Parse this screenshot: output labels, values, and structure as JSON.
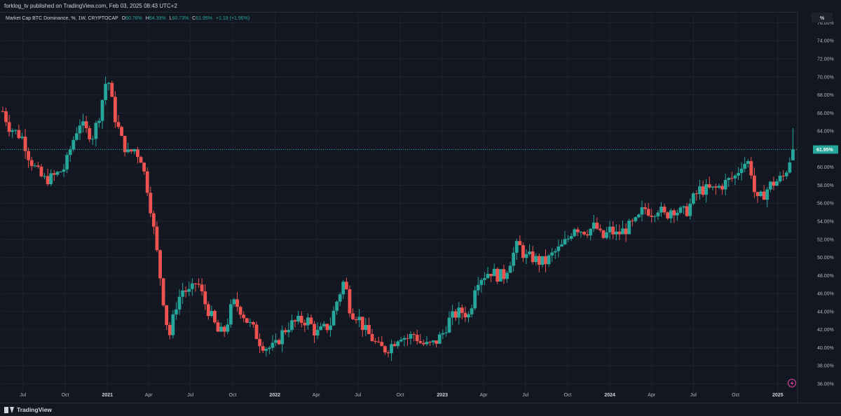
{
  "header": {
    "published_text": "forklog_tv published on TradingView.com, Feb 03, 2025 08:43 UTC+2"
  },
  "legend": {
    "title": "Market Cap BTC Dominance, %, 1W, CRYPTOCAP",
    "o_label": "O",
    "o_value": "60.76%",
    "h_label": "H",
    "h_value": "64.33%",
    "l_label": "L",
    "l_value": "60.73%",
    "c_label": "C",
    "c_value": "61.95%",
    "change": "+1.19 (+1.96%)"
  },
  "colors": {
    "background": "#131722",
    "grid": "#1f2330",
    "up": "#26a69a",
    "down": "#ef5350",
    "price_line": "#26a69a",
    "text": "#b2b5be"
  },
  "price_axis": {
    "unit_label": "%",
    "last_price_label": "61.95%"
  },
  "footer": {
    "brand": "TradingView",
    "logo_icon": "tradingview-logo-icon",
    "lightning_icon": "lightning-icon"
  },
  "chart_data": {
    "type": "candlestick",
    "title": "Market Cap BTC Dominance, %, 1W, CRYPTOCAP",
    "x_type": "time",
    "x_range": [
      "2020-05-15",
      "2025-02-10"
    ],
    "y_range": [
      35.3,
      77.2
    ],
    "y_ticks": [
      36,
      38,
      40,
      42,
      44,
      46,
      48,
      50,
      52,
      54,
      56,
      58,
      60,
      62,
      64,
      66,
      68,
      70,
      72,
      74,
      76
    ],
    "y_tick_labels": [
      "36.00%",
      "38.00%",
      "40.00%",
      "42.00%",
      "44.00%",
      "46.00%",
      "48.00%",
      "50.00%",
      "52.00%",
      "54.00%",
      "56.00%",
      "58.00%",
      "60.00%",
      "62.00%",
      "64.00%",
      "66.00%",
      "68.00%",
      "70.00%",
      "72.00%",
      "74.00%",
      "76.00%"
    ],
    "x_ticks": [
      {
        "date": "2020-07-01",
        "label": "Jul",
        "bold": false
      },
      {
        "date": "2020-10-01",
        "label": "Oct",
        "bold": false
      },
      {
        "date": "2021-01-01",
        "label": "2021",
        "bold": true
      },
      {
        "date": "2021-04-01",
        "label": "Apr",
        "bold": false
      },
      {
        "date": "2021-07-01",
        "label": "Jul",
        "bold": false
      },
      {
        "date": "2021-10-01",
        "label": "Oct",
        "bold": false
      },
      {
        "date": "2022-01-01",
        "label": "2022",
        "bold": true
      },
      {
        "date": "2022-04-01",
        "label": "Apr",
        "bold": false
      },
      {
        "date": "2022-07-01",
        "label": "Jul",
        "bold": false
      },
      {
        "date": "2022-10-01",
        "label": "Oct",
        "bold": false
      },
      {
        "date": "2023-01-01",
        "label": "2023",
        "bold": true
      },
      {
        "date": "2023-04-01",
        "label": "Apr",
        "bold": false
      },
      {
        "date": "2023-07-01",
        "label": "Jul",
        "bold": false
      },
      {
        "date": "2023-10-01",
        "label": "Oct",
        "bold": false
      },
      {
        "date": "2024-01-01",
        "label": "2024",
        "bold": true
      },
      {
        "date": "2024-04-01",
        "label": "Apr",
        "bold": false
      },
      {
        "date": "2024-07-01",
        "label": "Jul",
        "bold": false
      },
      {
        "date": "2024-10-01",
        "label": "Oct",
        "bold": false
      },
      {
        "date": "2025-01-01",
        "label": "2025",
        "bold": true
      }
    ],
    "last_close": 61.95,
    "closes_weekly": [
      {
        "date": "2020-05-18",
        "close": 66.2
      },
      {
        "date": "2020-06-01",
        "close": 64.5
      },
      {
        "date": "2020-07-01",
        "close": 63.2
      },
      {
        "date": "2020-07-15",
        "close": 61.0
      },
      {
        "date": "2020-08-01",
        "close": 59.5
      },
      {
        "date": "2020-08-15",
        "close": 58.6
      },
      {
        "date": "2020-09-01",
        "close": 58.8
      },
      {
        "date": "2020-09-15",
        "close": 59.3
      },
      {
        "date": "2020-10-01",
        "close": 60.0
      },
      {
        "date": "2020-10-15",
        "close": 62.5
      },
      {
        "date": "2020-11-01",
        "close": 65.0
      },
      {
        "date": "2020-11-15",
        "close": 64.0
      },
      {
        "date": "2020-12-01",
        "close": 63.5
      },
      {
        "date": "2020-12-15",
        "close": 66.0
      },
      {
        "date": "2021-01-01",
        "close": 70.3
      },
      {
        "date": "2021-01-15",
        "close": 66.0
      },
      {
        "date": "2021-02-01",
        "close": 63.0
      },
      {
        "date": "2021-02-15",
        "close": 61.5
      },
      {
        "date": "2021-03-01",
        "close": 62.0
      },
      {
        "date": "2021-03-15",
        "close": 61.0
      },
      {
        "date": "2021-04-01",
        "close": 57.0
      },
      {
        "date": "2021-04-15",
        "close": 52.0
      },
      {
        "date": "2021-05-01",
        "close": 46.0
      },
      {
        "date": "2021-05-15",
        "close": 41.0
      },
      {
        "date": "2021-06-01",
        "close": 45.0
      },
      {
        "date": "2021-06-15",
        "close": 46.5
      },
      {
        "date": "2021-07-01",
        "close": 46.0
      },
      {
        "date": "2021-07-15",
        "close": 47.5
      },
      {
        "date": "2021-08-01",
        "close": 45.0
      },
      {
        "date": "2021-08-15",
        "close": 43.5
      },
      {
        "date": "2021-09-01",
        "close": 41.5
      },
      {
        "date": "2021-09-15",
        "close": 42.0
      },
      {
        "date": "2021-10-01",
        "close": 45.0
      },
      {
        "date": "2021-10-15",
        "close": 44.5
      },
      {
        "date": "2021-11-01",
        "close": 43.0
      },
      {
        "date": "2021-11-15",
        "close": 42.0
      },
      {
        "date": "2021-12-01",
        "close": 40.5
      },
      {
        "date": "2021-12-15",
        "close": 40.0
      },
      {
        "date": "2022-01-01",
        "close": 40.0
      },
      {
        "date": "2022-01-15",
        "close": 41.5
      },
      {
        "date": "2022-02-01",
        "close": 42.5
      },
      {
        "date": "2022-02-15",
        "close": 42.8
      },
      {
        "date": "2022-03-01",
        "close": 43.0
      },
      {
        "date": "2022-03-15",
        "close": 43.0
      },
      {
        "date": "2022-04-01",
        "close": 41.5
      },
      {
        "date": "2022-04-15",
        "close": 42.0
      },
      {
        "date": "2022-05-01",
        "close": 42.5
      },
      {
        "date": "2022-05-15",
        "close": 45.0
      },
      {
        "date": "2022-06-01",
        "close": 47.5
      },
      {
        "date": "2022-06-15",
        "close": 44.0
      },
      {
        "date": "2022-07-01",
        "close": 43.5
      },
      {
        "date": "2022-07-15",
        "close": 42.0
      },
      {
        "date": "2022-08-01",
        "close": 41.0
      },
      {
        "date": "2022-08-15",
        "close": 40.0
      },
      {
        "date": "2022-09-01",
        "close": 39.8
      },
      {
        "date": "2022-09-15",
        "close": 40.5
      },
      {
        "date": "2022-10-01",
        "close": 41.5
      },
      {
        "date": "2022-10-15",
        "close": 41.0
      },
      {
        "date": "2022-11-01",
        "close": 41.5
      },
      {
        "date": "2022-11-15",
        "close": 40.5
      },
      {
        "date": "2022-12-01",
        "close": 40.2
      },
      {
        "date": "2022-12-15",
        "close": 40.5
      },
      {
        "date": "2023-01-01",
        "close": 41.5
      },
      {
        "date": "2023-01-15",
        "close": 43.0
      },
      {
        "date": "2023-02-01",
        "close": 43.8
      },
      {
        "date": "2023-02-15",
        "close": 44.0
      },
      {
        "date": "2023-03-01",
        "close": 43.5
      },
      {
        "date": "2023-03-15",
        "close": 47.5
      },
      {
        "date": "2023-04-01",
        "close": 48.0
      },
      {
        "date": "2023-04-15",
        "close": 48.5
      },
      {
        "date": "2023-05-01",
        "close": 48.0
      },
      {
        "date": "2023-05-15",
        "close": 48.0
      },
      {
        "date": "2023-06-01",
        "close": 50.0
      },
      {
        "date": "2023-06-15",
        "close": 51.5
      },
      {
        "date": "2023-07-01",
        "close": 50.0
      },
      {
        "date": "2023-07-15",
        "close": 50.0
      },
      {
        "date": "2023-08-01",
        "close": 49.5
      },
      {
        "date": "2023-08-15",
        "close": 49.5
      },
      {
        "date": "2023-09-01",
        "close": 50.5
      },
      {
        "date": "2023-09-15",
        "close": 51.0
      },
      {
        "date": "2023-10-01",
        "close": 52.0
      },
      {
        "date": "2023-10-15",
        "close": 53.5
      },
      {
        "date": "2023-11-01",
        "close": 53.0
      },
      {
        "date": "2023-11-15",
        "close": 53.0
      },
      {
        "date": "2023-12-01",
        "close": 53.5
      },
      {
        "date": "2023-12-15",
        "close": 52.0
      },
      {
        "date": "2024-01-01",
        "close": 53.0
      },
      {
        "date": "2024-01-15",
        "close": 52.5
      },
      {
        "date": "2024-02-01",
        "close": 53.0
      },
      {
        "date": "2024-02-15",
        "close": 53.5
      },
      {
        "date": "2024-03-01",
        "close": 54.0
      },
      {
        "date": "2024-03-15",
        "close": 55.5
      },
      {
        "date": "2024-04-01",
        "close": 55.0
      },
      {
        "date": "2024-04-15",
        "close": 55.5
      },
      {
        "date": "2024-05-01",
        "close": 54.5
      },
      {
        "date": "2024-05-15",
        "close": 55.5
      },
      {
        "date": "2024-06-01",
        "close": 55.0
      },
      {
        "date": "2024-06-15",
        "close": 55.0
      },
      {
        "date": "2024-07-01",
        "close": 56.5
      },
      {
        "date": "2024-07-15",
        "close": 57.5
      },
      {
        "date": "2024-08-01",
        "close": 57.5
      },
      {
        "date": "2024-08-15",
        "close": 57.5
      },
      {
        "date": "2024-09-01",
        "close": 58.0
      },
      {
        "date": "2024-09-15",
        "close": 58.5
      },
      {
        "date": "2024-10-01",
        "close": 59.0
      },
      {
        "date": "2024-10-15",
        "close": 60.5
      },
      {
        "date": "2024-11-01",
        "close": 60.5
      },
      {
        "date": "2024-11-15",
        "close": 56.0
      },
      {
        "date": "2024-12-01",
        "close": 57.0
      },
      {
        "date": "2024-12-15",
        "close": 58.0
      },
      {
        "date": "2025-01-01",
        "close": 58.5
      },
      {
        "date": "2025-01-15",
        "close": 59.0
      },
      {
        "date": "2025-02-03",
        "close": 61.95
      }
    ]
  }
}
